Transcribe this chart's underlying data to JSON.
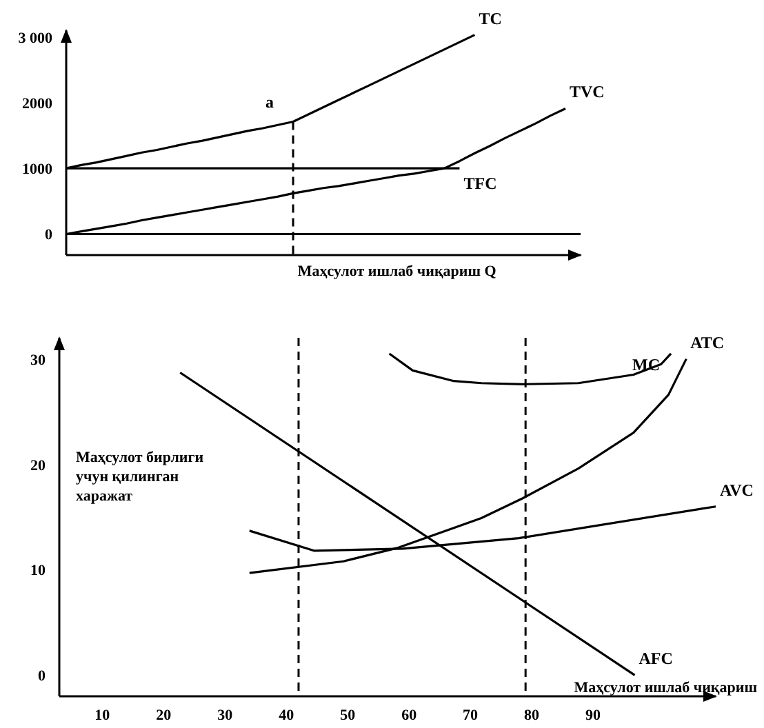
{
  "chart_data": [
    {
      "type": "line",
      "xlabel": "Маҳсулот ишлаб чиқариш Q",
      "categories": [
        null,
        null,
        null,
        null,
        null,
        null,
        null,
        null,
        null,
        null,
        null,
        null,
        null,
        null,
        null,
        null,
        null,
        null,
        null,
        null,
        null,
        null,
        null,
        null,
        null,
        null,
        null,
        null,
        null,
        null,
        null,
        null,
        null,
        null,
        null
      ],
      "ylim": [
        -320,
        3100
      ],
      "yticks": [
        0,
        1000,
        2000,
        {
          "value": 3000,
          "label": "3 000"
        }
      ],
      "tick_labels": "y",
      "grid": false,
      "legend": false,
      "marker": "none",
      "line_style": "solid",
      "series": [
        {
          "name": "TC",
          "color": "#000000",
          "values": [
            1000,
            1050,
            1090,
            1140,
            1190,
            1240,
            1280,
            1330,
            1380,
            1420,
            1470,
            1520,
            1570,
            1610,
            1660,
            1710,
            1820,
            1930,
            2040,
            2150,
            2260,
            2370,
            2480,
            2590,
            2700,
            2810,
            2920,
            3030,
            null,
            null,
            null,
            null,
            null,
            null,
            null
          ]
        },
        {
          "name": "TVC",
          "color": "#000000",
          "values": [
            0,
            40,
            80,
            120,
            160,
            210,
            250,
            290,
            330,
            370,
            410,
            450,
            490,
            530,
            570,
            620,
            660,
            700,
            730,
            770,
            810,
            850,
            890,
            920,
            960,
            1000,
            1110,
            1230,
            1340,
            1460,
            1570,
            1680,
            1800,
            1910,
            null
          ]
        },
        {
          "name": "TFC",
          "color": "#000000",
          "values": [
            1000,
            1000,
            1000,
            1000,
            1000,
            1000,
            1000,
            1000,
            1000,
            1000,
            1000,
            1000,
            1000,
            1000,
            1000,
            1000,
            1000,
            1000,
            1000,
            1000,
            1000,
            1000,
            1000,
            1000,
            1000,
            1000,
            1000,
            null,
            null,
            null,
            null,
            null,
            null,
            null,
            null
          ]
        }
      ],
      "ref_lines": [
        {
          "axis": "y",
          "value": 0,
          "line_style": "solid",
          "color": "#000000"
        }
      ],
      "annotations": [
        {
          "text": "a",
          "y": 1710
        }
      ]
    },
    {
      "type": "line",
      "xlabel": "Маҳсулот ишлаб чиқариш",
      "xlim": [
        3,
        110
      ],
      "ylim": [
        -2,
        32
      ],
      "xticks": [
        10,
        20,
        30,
        40,
        50,
        60,
        70,
        80,
        90
      ],
      "yticks": [
        0,
        10,
        20,
        30
      ],
      "grid": false,
      "legend": false,
      "marker": "none",
      "line_style": "solid",
      "series": [
        {
          "name": "MC",
          "color": "#000000",
          "x": [
            56.8,
            60.6,
            67.3,
            71.8,
            78.6,
            87.6,
            96.6,
            101.1,
            102.7
          ],
          "values": [
            30.5,
            28.9,
            27.9,
            27.7,
            27.6,
            27.7,
            28.5,
            29.5,
            30.5
          ]
        },
        {
          "name": "ATC",
          "color": "#000000",
          "x": [
            34,
            49.3,
            58.3,
            71.8,
            78.6,
            87.6,
            96.6,
            102.3,
            105.2
          ],
          "values": [
            9.7,
            10.8,
            12.1,
            14.9,
            16.8,
            19.6,
            23,
            26.6,
            30
          ]
        },
        {
          "name": "AVC",
          "color": "#000000",
          "x": [
            34,
            44.6,
            59,
            77.9,
            110
          ],
          "values": [
            13.7,
            11.8,
            12,
            13,
            16
          ]
        },
        {
          "name": "AFC",
          "color": "#000000",
          "x": [
            22.7,
            96.8
          ],
          "values": [
            28.7,
            0
          ]
        }
      ],
      "ref_lines": [
        {
          "axis": "x",
          "value": 42,
          "line_style": "dashed",
          "color": "#000000"
        },
        {
          "axis": "x",
          "value": 79,
          "line_style": "dashed",
          "color": "#000000"
        }
      ],
      "annotations": [
        "Маҳсулот бирлиги учун қилинган харажат"
      ]
    }
  ]
}
